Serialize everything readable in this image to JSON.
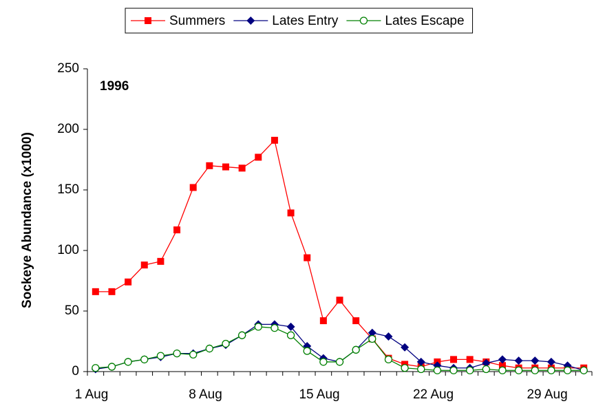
{
  "chart_data": {
    "type": "line",
    "annotation": "1996",
    "y_label": "Sockeye Abundance (x1000)",
    "categories": [
      "1 Aug",
      null,
      null,
      null,
      null,
      null,
      null,
      "8 Aug",
      null,
      null,
      null,
      null,
      null,
      null,
      "15 Aug",
      null,
      null,
      null,
      null,
      null,
      null,
      "22 Aug",
      null,
      null,
      null,
      null,
      null,
      null,
      "29 Aug",
      null,
      null
    ],
    "series": [
      {
        "name": "Summers",
        "color": "#ff0000",
        "marker": "square",
        "values": [
          66,
          66,
          74,
          88,
          91,
          117,
          152,
          170,
          169,
          168,
          177,
          191,
          131,
          94,
          42,
          59,
          42,
          27,
          11,
          6,
          4,
          8,
          10,
          10,
          8,
          5,
          3,
          3,
          3,
          3,
          3
        ]
      },
      {
        "name": "Lates Entry",
        "color": "#000080",
        "marker": "diamond",
        "values": [
          2,
          4,
          8,
          10,
          12,
          15,
          15,
          19,
          22,
          30,
          39,
          39,
          37,
          21,
          11,
          8,
          18,
          32,
          29,
          20,
          8,
          5,
          3,
          3,
          7,
          10,
          9,
          9,
          8,
          5,
          1
        ]
      },
      {
        "name": "Lates Escape",
        "color": "#008000",
        "marker": "circle",
        "values": [
          3,
          4,
          8,
          10,
          13,
          15,
          14,
          19,
          23,
          30,
          37,
          36,
          30,
          17,
          8,
          8,
          18,
          27,
          10,
          3,
          2,
          1,
          1,
          1,
          2,
          1,
          1,
          1,
          1,
          1,
          1
        ]
      }
    ],
    "ylim": [
      0,
      250
    ],
    "yticks": [
      0,
      50,
      100,
      150,
      200,
      250
    ],
    "grid": false,
    "legend": "top"
  }
}
